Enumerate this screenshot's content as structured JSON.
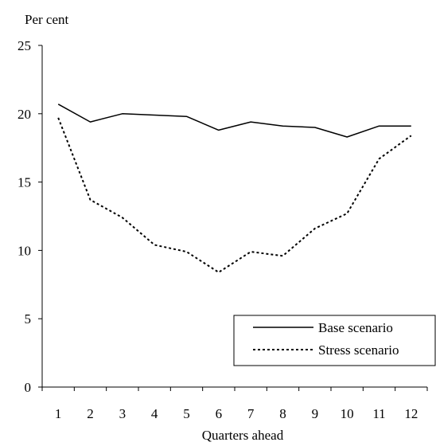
{
  "chart_data": {
    "type": "line",
    "ylabel": "Per cent",
    "xlabel": "Quarters ahead",
    "ylim": [
      0,
      25
    ],
    "yticks": [
      0,
      5,
      10,
      15,
      20,
      25
    ],
    "x": [
      1,
      2,
      3,
      4,
      5,
      6,
      7,
      8,
      9,
      10,
      11,
      12
    ],
    "grid": false,
    "legend_position": "bottom-right",
    "series": [
      {
        "name": "Base scenario",
        "style": "solid",
        "values": [
          20.7,
          19.4,
          20.0,
          19.9,
          19.8,
          18.8,
          19.4,
          19.1,
          19.0,
          18.3,
          19.1,
          19.1
        ]
      },
      {
        "name": "Stress scenario",
        "style": "dotted",
        "values": [
          19.7,
          13.7,
          12.4,
          10.4,
          9.9,
          8.4,
          9.9,
          9.6,
          11.6,
          12.7,
          16.7,
          18.4
        ]
      }
    ]
  }
}
